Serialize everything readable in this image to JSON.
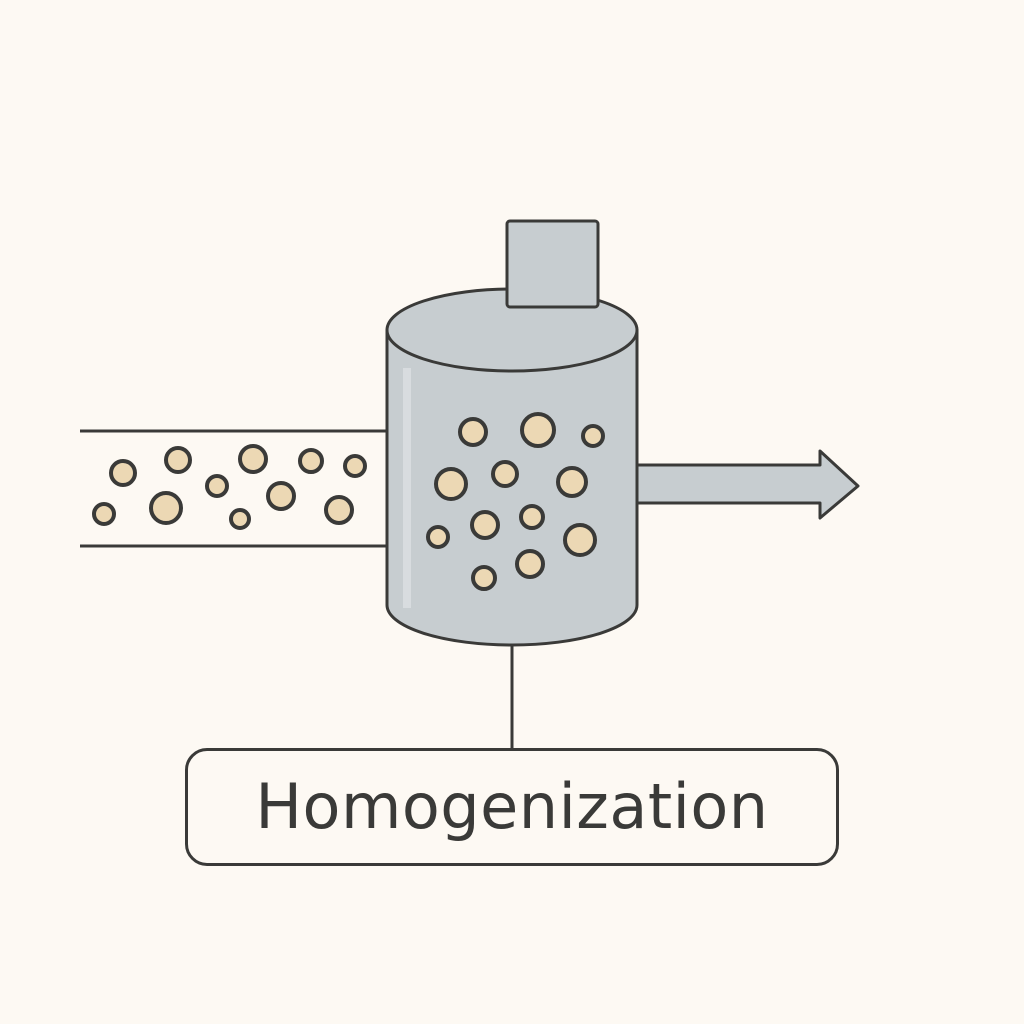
{
  "label": {
    "text": "Homogenization"
  },
  "icons": {
    "inlet_pipe": "inlet-pipe-icon",
    "vessel": "homogenizer-vessel-icon",
    "motor": "motor-icon",
    "outlet_arrow": "outlet-arrow-icon"
  },
  "colors": {
    "background": "#fdf9f3",
    "outline": "#3a3a38",
    "vessel_fill": "#c7cdd0",
    "particle_fill": "#ecd8b4"
  }
}
